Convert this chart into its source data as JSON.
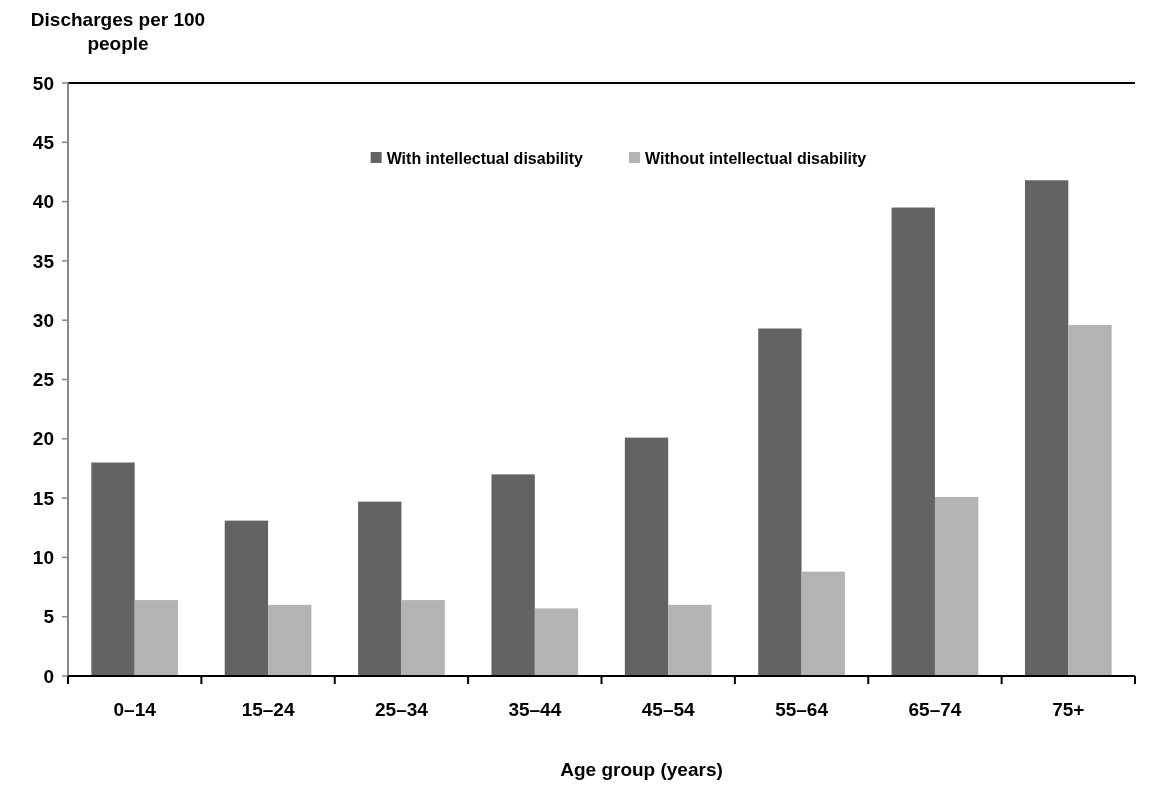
{
  "chart_data": {
    "type": "bar",
    "xlabel": "Age group (years)",
    "ylabel": "Discharges per 100 people",
    "categories": [
      "0–14",
      "15–24",
      "25–34",
      "35–44",
      "45–54",
      "55–64",
      "65–74",
      "75+"
    ],
    "series": [
      {
        "name": "With intellectual disability",
        "color": "#636363",
        "values": [
          18.0,
          13.1,
          14.7,
          17.0,
          20.1,
          29.3,
          39.5,
          41.8
        ]
      },
      {
        "name": "Without intellectual disability",
        "color": "#b3b3b3",
        "values": [
          6.4,
          6.0,
          6.4,
          5.7,
          6.0,
          8.8,
          15.1,
          29.6
        ]
      }
    ],
    "ylim": [
      0,
      50
    ],
    "yticks": [
      0,
      5,
      10,
      15,
      20,
      25,
      30,
      35,
      40,
      45,
      50
    ],
    "legend": "top"
  }
}
